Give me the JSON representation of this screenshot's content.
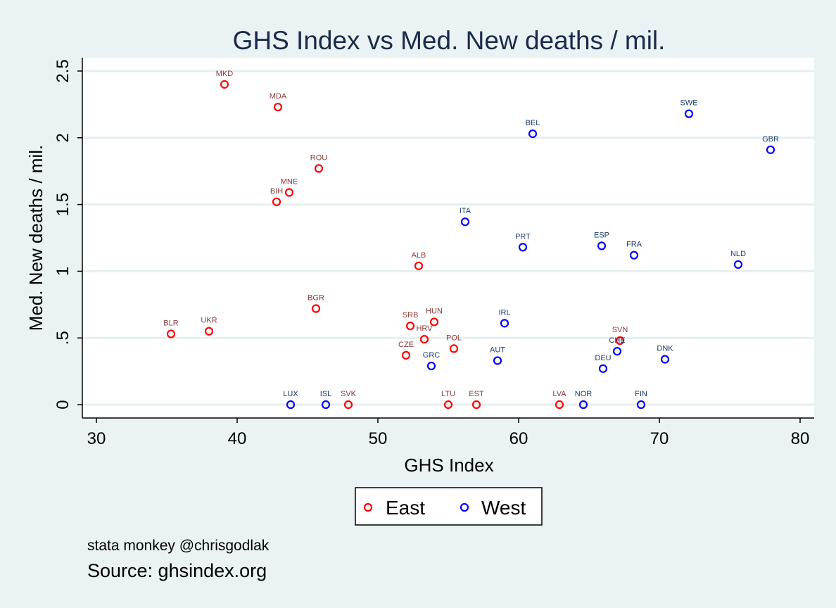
{
  "chart_data": {
    "type": "scatter",
    "title": "GHS Index vs Med. New deaths / mil.",
    "xlabel": "GHS Index",
    "ylabel": "Med. New deaths / mil.",
    "xlim": [
      29,
      81
    ],
    "ylim": [
      -0.1,
      2.6
    ],
    "xticks": [
      30,
      40,
      50,
      60,
      70,
      80
    ],
    "yticks": [
      0,
      0.5,
      1,
      1.5,
      2,
      2.5
    ],
    "ytick_labels": [
      "0",
      ".5",
      "1",
      "1.5",
      "2",
      "2.5"
    ],
    "grid": "horizontal",
    "legend_position": "bottom",
    "series": [
      {
        "name": "East",
        "color": "#ff0000",
        "label_color": "#8b3a3a",
        "points": [
          {
            "label": "MKD",
            "x": 39.1,
            "y": 2.4
          },
          {
            "label": "MDA",
            "x": 42.9,
            "y": 2.23
          },
          {
            "label": "ROU",
            "x": 45.8,
            "y": 1.77
          },
          {
            "label": "MNE",
            "x": 43.7,
            "y": 1.59
          },
          {
            "label": "BIH",
            "x": 42.8,
            "y": 1.52
          },
          {
            "label": "ALB",
            "x": 52.9,
            "y": 1.04
          },
          {
            "label": "BGR",
            "x": 45.6,
            "y": 0.72
          },
          {
            "label": "BLR",
            "x": 35.3,
            "y": 0.53
          },
          {
            "label": "UKR",
            "x": 38.0,
            "y": 0.55
          },
          {
            "label": "SRB",
            "x": 52.3,
            "y": 0.59
          },
          {
            "label": "HUN",
            "x": 54.0,
            "y": 0.62
          },
          {
            "label": "HRV",
            "x": 53.3,
            "y": 0.49
          },
          {
            "label": "CZE",
            "x": 52.0,
            "y": 0.37
          },
          {
            "label": "POL",
            "x": 55.4,
            "y": 0.42
          },
          {
            "label": "SVN",
            "x": 67.2,
            "y": 0.48
          },
          {
            "label": "SVK",
            "x": 47.9,
            "y": 0.0
          },
          {
            "label": "LTU",
            "x": 55.0,
            "y": 0.0
          },
          {
            "label": "EST",
            "x": 57.0,
            "y": 0.0
          },
          {
            "label": "LVA",
            "x": 62.9,
            "y": 0.0
          }
        ]
      },
      {
        "name": "West",
        "color": "#0000ff",
        "label_color": "#1a3a6b",
        "points": [
          {
            "label": "BEL",
            "x": 61.0,
            "y": 2.03
          },
          {
            "label": "SWE",
            "x": 72.1,
            "y": 2.18
          },
          {
            "label": "GBR",
            "x": 77.9,
            "y": 1.91
          },
          {
            "label": "ITA",
            "x": 56.2,
            "y": 1.37
          },
          {
            "label": "PRT",
            "x": 60.3,
            "y": 1.18
          },
          {
            "label": "ESP",
            "x": 65.9,
            "y": 1.19
          },
          {
            "label": "FRA",
            "x": 68.2,
            "y": 1.12
          },
          {
            "label": "NLD",
            "x": 75.6,
            "y": 1.05
          },
          {
            "label": "IRL",
            "x": 59.0,
            "y": 0.61
          },
          {
            "label": "AUT",
            "x": 58.5,
            "y": 0.33
          },
          {
            "label": "GRC",
            "x": 53.8,
            "y": 0.29
          },
          {
            "label": "CHE",
            "x": 67.0,
            "y": 0.4
          },
          {
            "label": "DEU",
            "x": 66.0,
            "y": 0.27
          },
          {
            "label": "DNK",
            "x": 70.4,
            "y": 0.34
          },
          {
            "label": "LUX",
            "x": 43.8,
            "y": 0.0
          },
          {
            "label": "ISL",
            "x": 46.3,
            "y": 0.0
          },
          {
            "label": "NOR",
            "x": 64.6,
            "y": 0.0
          },
          {
            "label": "FIN",
            "x": 68.7,
            "y": 0.0
          }
        ]
      }
    ]
  },
  "footer": {
    "credit": "stata monkey @chrisgodlak",
    "source": "Source: ghsindex.org"
  }
}
